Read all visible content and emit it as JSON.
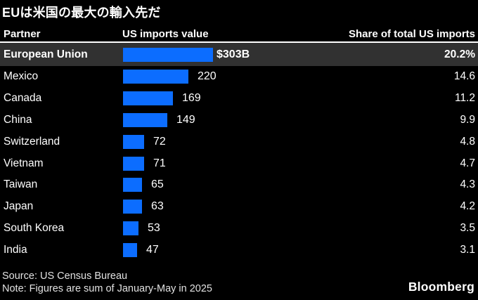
{
  "title": "EUは米国の最大の輸入先だ",
  "table": {
    "headers": {
      "partner": "Partner",
      "value": "US imports value",
      "share": "Share of total US imports"
    },
    "rows": [
      {
        "partner": "European Union",
        "value": 303,
        "value_label": "$303B",
        "share": "20.2%",
        "highlighted": true
      },
      {
        "partner": "Mexico",
        "value": 220,
        "value_label": "220",
        "share": "14.6",
        "highlighted": false
      },
      {
        "partner": "Canada",
        "value": 169,
        "value_label": "169",
        "share": "11.2",
        "highlighted": false
      },
      {
        "partner": "China",
        "value": 149,
        "value_label": "149",
        "share": "9.9",
        "highlighted": false
      },
      {
        "partner": "Switzerland",
        "value": 72,
        "value_label": "72",
        "share": "4.8",
        "highlighted": false
      },
      {
        "partner": "Vietnam",
        "value": 71,
        "value_label": "71",
        "share": "4.7",
        "highlighted": false
      },
      {
        "partner": "Taiwan",
        "value": 65,
        "value_label": "65",
        "share": "4.3",
        "highlighted": false
      },
      {
        "partner": "Japan",
        "value": 63,
        "value_label": "63",
        "share": "4.2",
        "highlighted": false
      },
      {
        "partner": "South Korea",
        "value": 53,
        "value_label": "53",
        "share": "3.5",
        "highlighted": false
      },
      {
        "partner": "India",
        "value": 47,
        "value_label": "47",
        "share": "3.1",
        "highlighted": false
      }
    ]
  },
  "footer": {
    "source": "Source: US Census Bureau",
    "note": "Note: Figures are sum of January-May in 2025",
    "brand": "Bloomberg"
  },
  "colors": {
    "background": "#000000",
    "text": "#ffffff",
    "bar": "#0c6dff",
    "highlight_row": "#313131",
    "divider": "#ffffff",
    "footer_text": "#e2e2e2"
  },
  "chart_data": {
    "type": "bar",
    "orientation": "horizontal",
    "title": "EUは米国の最大の輸入先だ",
    "categories": [
      "European Union",
      "Mexico",
      "Canada",
      "China",
      "Switzerland",
      "Vietnam",
      "Taiwan",
      "Japan",
      "South Korea",
      "India"
    ],
    "series": [
      {
        "name": "US imports value ($B)",
        "values": [
          303,
          220,
          169,
          149,
          72,
          71,
          65,
          63,
          53,
          47
        ]
      },
      {
        "name": "Share of total US imports (%)",
        "values": [
          20.2,
          14.6,
          11.2,
          9.9,
          4.8,
          4.7,
          4.3,
          4.2,
          3.5,
          3.1
        ]
      }
    ],
    "value_labels": [
      "$303B",
      "220",
      "169",
      "149",
      "72",
      "71",
      "65",
      "63",
      "53",
      "47"
    ],
    "share_labels": [
      "20.2%",
      "14.6",
      "11.2",
      "9.9",
      "4.8",
      "4.7",
      "4.3",
      "4.2",
      "3.5",
      "3.1"
    ],
    "xlabel": "US imports value",
    "ylabel": "Partner",
    "xlim": [
      0,
      303
    ],
    "grid": false,
    "legend": "none",
    "highlighted_category": "European Union",
    "source": "US Census Bureau",
    "note": "Figures are sum of January-May in 2025"
  }
}
